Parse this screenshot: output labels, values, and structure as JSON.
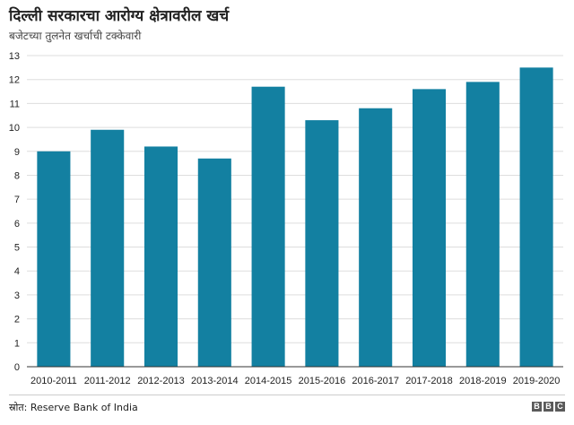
{
  "chart_data": {
    "type": "bar",
    "title": "दिल्ली सरकारचा आरोग्य क्षेत्रावरील खर्च",
    "subtitle": "बजेटच्या तुलनेत खर्चाची टक्केवारी",
    "categories": [
      "2010-2011",
      "2011-2012",
      "2012-2013",
      "2013-2014",
      "2014-2015",
      "2015-2016",
      "2016-2017",
      "2017-2018",
      "2018-2019",
      "2019-2020"
    ],
    "values": [
      9.0,
      9.9,
      9.2,
      8.7,
      11.7,
      10.3,
      10.8,
      11.6,
      11.9,
      12.5
    ],
    "ylim": [
      0,
      13
    ],
    "yticks": [
      0,
      1,
      2,
      3,
      4,
      5,
      6,
      7,
      8,
      9,
      10,
      11,
      12,
      13
    ],
    "grid": true,
    "bar_color": "#1380A1",
    "grid_color": "#dddddd"
  },
  "footer": {
    "source": "स्रोत: Reserve Bank of India",
    "logo_letters": [
      "B",
      "B",
      "C"
    ]
  }
}
